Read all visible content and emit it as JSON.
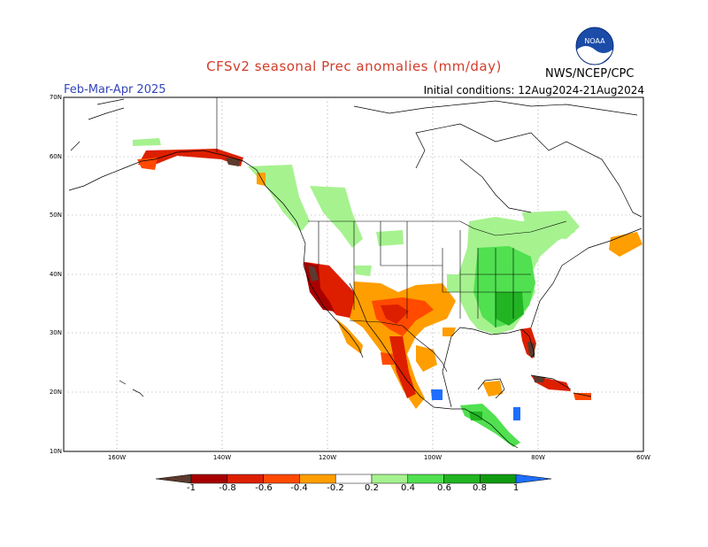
{
  "header": {
    "title": "CFSv2 seasonal Prec anomalies (mm/day)",
    "season": "Feb-Mar-Apr 2025",
    "initial_conditions": "Initial conditions: 12Aug2024-21Aug2024",
    "agency": "NWS/NCEP/CPC",
    "logo_text": "NOAA"
  },
  "map": {
    "lat_ticks": [
      "70N",
      "60N",
      "50N",
      "40N",
      "30N",
      "20N",
      "10N"
    ],
    "lon_ticks": [
      "160W",
      "140W",
      "120W",
      "100W",
      "80W",
      "60W"
    ]
  },
  "legend": {
    "labels": [
      "-1",
      "-0.8",
      "-0.6",
      "-0.4",
      "-0.2",
      "0.2",
      "0.4",
      "0.6",
      "0.8",
      "1"
    ],
    "colors": [
      "#5c3a2e",
      "#a80000",
      "#dd1f00",
      "#ff4a00",
      "#ff9e00",
      "#ffffff",
      "#a6f28f",
      "#50e050",
      "#22b422",
      "#109a10",
      "#1e6eff"
    ]
  },
  "colors": {
    "title": "#d23c2a",
    "season": "#3345b8"
  }
}
